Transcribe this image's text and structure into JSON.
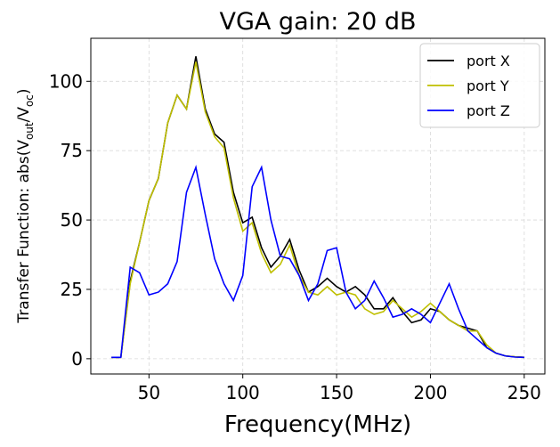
{
  "chart_data": {
    "type": "line",
    "title": "VGA gain: 20 dB",
    "xlabel": "Frequency(MHz)",
    "ylabel": [
      "Transfer Function: abs(V",
      "out",
      "/V",
      "oc",
      ")"
    ],
    "x": [
      30,
      35,
      40,
      45,
      50,
      55,
      60,
      65,
      70,
      75,
      80,
      85,
      90,
      95,
      100,
      105,
      110,
      115,
      120,
      125,
      130,
      135,
      140,
      145,
      150,
      155,
      160,
      165,
      170,
      175,
      180,
      185,
      190,
      195,
      200,
      205,
      210,
      215,
      220,
      225,
      230,
      235,
      240,
      245,
      250
    ],
    "series": [
      {
        "name": "port X",
        "color": "#000000",
        "values": [
          0.5,
          0.5,
          28,
          42,
          57,
          65,
          85,
          95,
          90,
          109,
          90,
          81,
          78,
          60,
          49,
          51,
          40,
          33,
          37,
          43,
          32,
          24,
          26,
          29,
          26,
          24,
          26,
          23,
          18,
          18,
          22,
          17,
          13,
          14,
          18,
          17,
          14,
          12,
          11,
          10,
          4,
          2,
          1,
          0.7,
          0.5
        ]
      },
      {
        "name": "port Y",
        "color": "#bfbf00",
        "values": [
          0.5,
          0.5,
          27,
          42,
          57,
          65,
          85,
          95,
          90,
          107,
          89,
          80,
          76,
          58,
          46,
          49,
          38,
          31,
          34,
          41,
          30,
          24,
          23,
          26,
          23,
          24,
          23,
          18,
          16,
          17,
          21,
          18,
          15,
          17,
          20,
          17,
          14,
          12,
          10,
          10,
          5,
          2,
          1,
          0.7,
          0.5
        ]
      },
      {
        "name": "port Z",
        "color": "#0000ff",
        "values": [
          0.5,
          0.5,
          33,
          31,
          23,
          24,
          27,
          35,
          60,
          69,
          52,
          36,
          27,
          21,
          30,
          62,
          69,
          50,
          37,
          36,
          30,
          21,
          27,
          39,
          40,
          24,
          18,
          21,
          28,
          22,
          15,
          16,
          18,
          16,
          13,
          20,
          27,
          18,
          10,
          7,
          4,
          2,
          1,
          0.6,
          0.5
        ]
      }
    ],
    "xlim": [
      19,
      261
    ],
    "ylim": [
      -5.5,
      115.5
    ],
    "xticks": [
      50,
      100,
      150,
      200,
      250
    ],
    "yticks": [
      0,
      25,
      50,
      75,
      100
    ],
    "grid": true,
    "legend": "upper right"
  }
}
